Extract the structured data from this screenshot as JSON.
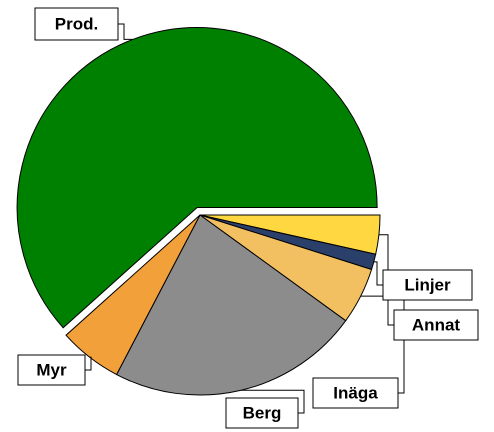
{
  "chart_data": {
    "type": "pie",
    "categories": [
      "Annat",
      "Linjer",
      "Inäga",
      "Berg",
      "Myr",
      "Prod."
    ],
    "values": [
      3.5,
      1.4,
      5.1,
      22.7,
      5.7,
      61.7
    ],
    "colors": [
      "#ffd740",
      "#2b3f6b",
      "#f2c060",
      "#8c8c8c",
      "#f2a03a",
      "#008000"
    ],
    "exploded": "Prod."
  }
}
